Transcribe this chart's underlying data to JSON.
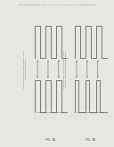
{
  "bg_color": "#e8e6e0",
  "header_color": "#888888",
  "waveform_color": "#666666",
  "text_color": "#555555",
  "fig_label_color": "#444444",
  "header_text": "Patent Application Publication    Jan. 1, 2004   Sheet 7 of 8    US 2004/0000xxx A1",
  "fig3a_label": "FIG. 3A",
  "fig3b_label": "FIG. 3B",
  "fig3a_title_line1": "CLOCK OUTPUT (2T) DUTY CYCLE = 50%",
  "fig3a_title_line2": "(NO VOLTAGE OFFSET)",
  "fig3b_title_line1": "CLOCK OUTPUT (2T) DUTY CYCLE = 50%",
  "fig3b_title_line2": "OFFSET - DUTY NODE PULLED DOWN",
  "panel_bg": "#dedad2"
}
